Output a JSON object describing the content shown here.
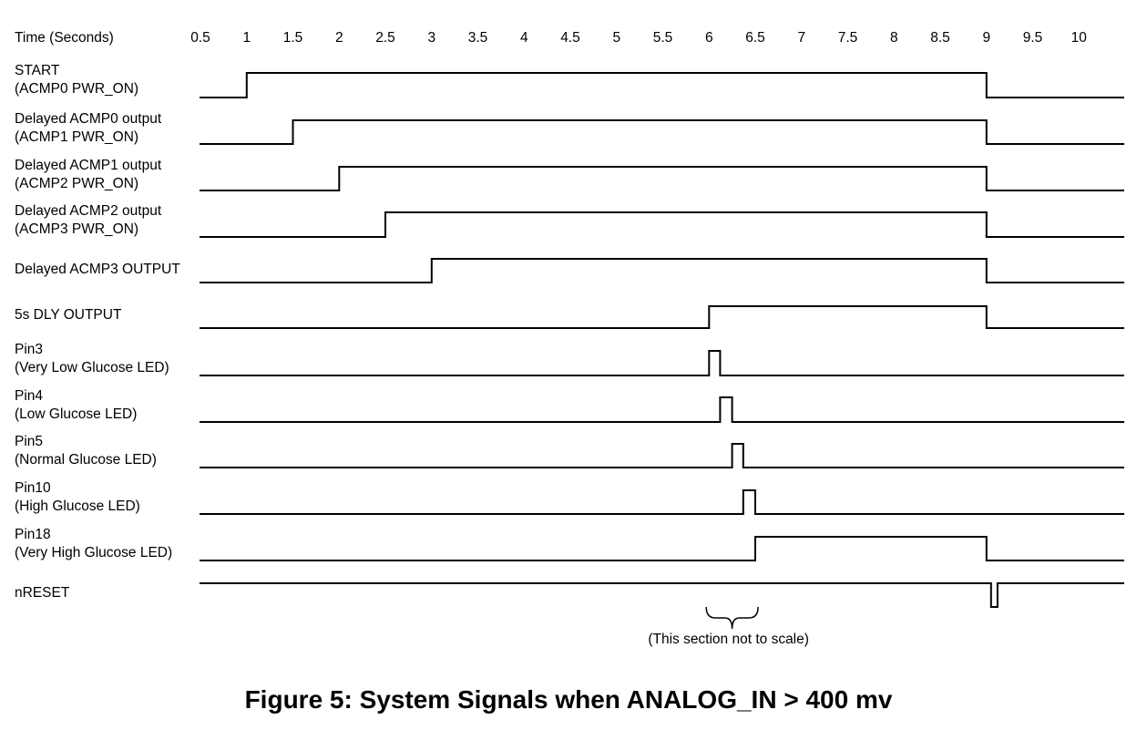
{
  "time_axis": {
    "label": "Time (Seconds)",
    "ticks": [
      "0.5",
      "1",
      "1.5",
      "2",
      "2.5",
      "3",
      "3.5",
      "4",
      "4.5",
      "5",
      "5.5",
      "6",
      "6.5",
      "7",
      "7.5",
      "8",
      "8.5",
      "9",
      "9.5",
      "10"
    ]
  },
  "signals": [
    {
      "label_lines": [
        "START",
        "(ACMP0 PWR_ON)"
      ],
      "idle": "low",
      "transitions": [
        1,
        9
      ]
    },
    {
      "label_lines": [
        "Delayed ACMP0 output",
        "(ACMP1 PWR_ON)"
      ],
      "idle": "low",
      "transitions": [
        1.5,
        9
      ]
    },
    {
      "label_lines": [
        "Delayed ACMP1 output",
        "(ACMP2 PWR_ON)"
      ],
      "idle": "low",
      "transitions": [
        2,
        9
      ]
    },
    {
      "label_lines": [
        "Delayed ACMP2 output",
        "(ACMP3 PWR_ON)"
      ],
      "idle": "low",
      "transitions": [
        2.5,
        9
      ]
    },
    {
      "label_lines": [
        "Delayed ACMP3 OUTPUT"
      ],
      "idle": "low",
      "transitions": [
        3,
        9
      ]
    },
    {
      "label_lines": [
        "5s DLY OUTPUT"
      ],
      "idle": "low",
      "transitions": [
        6,
        9
      ]
    },
    {
      "label_lines": [
        "Pin3",
        "(Very Low Glucose LED)"
      ],
      "idle": "low",
      "transitions": [
        6.0,
        6.12
      ]
    },
    {
      "label_lines": [
        "Pin4",
        "(Low Glucose LED)"
      ],
      "idle": "low",
      "transitions": [
        6.12,
        6.25
      ]
    },
    {
      "label_lines": [
        "Pin5",
        "(Normal Glucose LED)"
      ],
      "idle": "low",
      "transitions": [
        6.25,
        6.37
      ]
    },
    {
      "label_lines": [
        "Pin10",
        "(High Glucose LED)"
      ],
      "idle": "low",
      "transitions": [
        6.37,
        6.5
      ]
    },
    {
      "label_lines": [
        "Pin18",
        "(Very High Glucose LED)"
      ],
      "idle": "low",
      "transitions": [
        6.5,
        9
      ]
    },
    {
      "label_lines": [
        "nRESET"
      ],
      "idle": "high",
      "transitions": [
        9.05,
        9.12
      ]
    }
  ],
  "annotation": {
    "text": "(This section not to scale)",
    "from": 5.97,
    "to": 6.53
  },
  "caption": "Figure 5: System Signals when ANALOG_IN > 400 mv"
}
